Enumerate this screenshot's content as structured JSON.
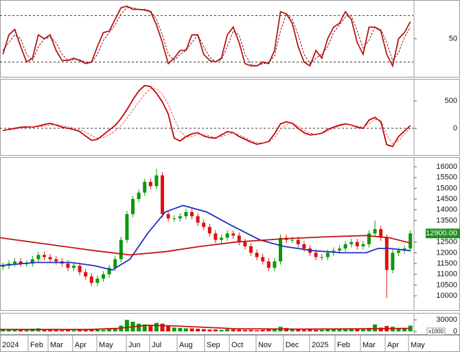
{
  "chart_data": [
    {
      "type": "line",
      "ylim": [
        0,
        100
      ],
      "yticks": [
        50
      ],
      "hlines": [
        20,
        80
      ],
      "xlim": [
        0,
        70
      ],
      "x": [
        0.5,
        1.5,
        2.5,
        3.5,
        4.5,
        5.5,
        6.5,
        7.5,
        8.5,
        9.5,
        10.5,
        11.5,
        12.5,
        13.5,
        14.5,
        15.5,
        16.5,
        17.5,
        18.5,
        19.5,
        20.5,
        21.5,
        22.5,
        23.5,
        24.5,
        25.5,
        26.5,
        27.5,
        28.5,
        29.5,
        30.5,
        31.5,
        32.5,
        33.5,
        34.5,
        35.5,
        36.5,
        37.5,
        38.5,
        39.5,
        40.5,
        41.5,
        42.5,
        43.5,
        44.5,
        45.5,
        46.5,
        47.5,
        48.5,
        49.5,
        50.5,
        51.5,
        52.5,
        53.5,
        54.5,
        55.5,
        56.5,
        57.5,
        58.5,
        59.5,
        60.5,
        61.5,
        62.5,
        63.5,
        64.5,
        65.5,
        66.5,
        67.5,
        68.5,
        69.5
      ],
      "series": [
        {
          "color": "#b81414",
          "dash": false,
          "values": [
            30,
            55,
            62,
            40,
            20,
            25,
            55,
            50,
            55,
            35,
            22,
            22,
            25,
            22,
            18,
            20,
            40,
            58,
            60,
            75,
            90,
            92,
            88,
            88,
            87,
            85,
            68,
            45,
            18,
            25,
            35,
            35,
            55,
            55,
            30,
            22,
            20,
            25,
            55,
            65,
            45,
            18,
            15,
            15,
            20,
            18,
            35,
            85,
            82,
            70,
            40,
            20,
            15,
            35,
            25,
            50,
            65,
            70,
            85,
            75,
            45,
            30,
            65,
            65,
            60,
            30,
            15,
            50,
            58,
            72
          ]
        },
        {
          "color": "#7a1010",
          "dash": true,
          "values": [
            35,
            45,
            55,
            50,
            30,
            22,
            40,
            50,
            52,
            45,
            30,
            22,
            23,
            23,
            20,
            19,
            30,
            48,
            58,
            68,
            82,
            90,
            90,
            88,
            88,
            86,
            75,
            55,
            30,
            22,
            30,
            35,
            45,
            55,
            40,
            26,
            21,
            23,
            40,
            60,
            55,
            30,
            17,
            15,
            18,
            19,
            28,
            60,
            82,
            75,
            55,
            30,
            18,
            25,
            30,
            40,
            58,
            68,
            78,
            80,
            60,
            38,
            48,
            65,
            62,
            45,
            22,
            32,
            52,
            65
          ]
        }
      ]
    },
    {
      "type": "line",
      "ylim": [
        -500,
        900
      ],
      "yticks": [
        0,
        500
      ],
      "hlines": [
        0
      ],
      "xlim": [
        0,
        70
      ],
      "x": [
        0.5,
        1.5,
        2.5,
        3.5,
        4.5,
        5.5,
        6.5,
        7.5,
        8.5,
        9.5,
        10.5,
        11.5,
        12.5,
        13.5,
        14.5,
        15.5,
        16.5,
        17.5,
        18.5,
        19.5,
        20.5,
        21.5,
        22.5,
        23.5,
        24.5,
        25.5,
        26.5,
        27.5,
        28.5,
        29.5,
        30.5,
        31.5,
        32.5,
        33.5,
        34.5,
        35.5,
        36.5,
        37.5,
        38.5,
        39.5,
        40.5,
        41.5,
        42.5,
        43.5,
        44.5,
        45.5,
        46.5,
        47.5,
        48.5,
        49.5,
        50.5,
        51.5,
        52.5,
        53.5,
        54.5,
        55.5,
        56.5,
        57.5,
        58.5,
        59.5,
        60.5,
        61.5,
        62.5,
        63.5,
        64.5,
        65.5,
        66.5,
        67.5,
        68.5,
        69.5
      ],
      "series": [
        {
          "color": "#c00000",
          "dash": false,
          "values": [
            -40,
            -20,
            0,
            20,
            25,
            20,
            40,
            70,
            90,
            60,
            20,
            0,
            -20,
            -60,
            -140,
            -220,
            -200,
            -120,
            -30,
            50,
            180,
            340,
            520,
            680,
            780,
            760,
            640,
            480,
            260,
            -180,
            -230,
            -150,
            -100,
            -80,
            -140,
            -170,
            -180,
            -120,
            -60,
            -80,
            -150,
            -200,
            -250,
            -290,
            -270,
            -240,
            -100,
            80,
            120,
            90,
            0,
            -80,
            -120,
            -110,
            -90,
            -20,
            20,
            60,
            80,
            60,
            20,
            0,
            150,
            200,
            120,
            -300,
            -330,
            -150,
            -50,
            50
          ]
        },
        {
          "color": "#e05050",
          "dash": true,
          "values": [
            -30,
            -30,
            -15,
            0,
            15,
            22,
            27,
            40,
            60,
            70,
            50,
            30,
            5,
            -25,
            -70,
            -130,
            -180,
            -170,
            -120,
            -50,
            50,
            180,
            330,
            480,
            620,
            720,
            720,
            620,
            440,
            180,
            -50,
            -160,
            -150,
            -110,
            -110,
            -140,
            -170,
            -150,
            -110,
            -80,
            -120,
            -170,
            -220,
            -260,
            -270,
            -250,
            -170,
            -20,
            70,
            100,
            40,
            -30,
            -90,
            -110,
            -100,
            -50,
            0,
            40,
            70,
            60,
            40,
            20,
            90,
            160,
            150,
            -120,
            -280,
            -230,
            -100,
            0
          ]
        }
      ]
    },
    {
      "type": "candlestick",
      "ylim": [
        9300,
        16450
      ],
      "yticks": [
        10000,
        10500,
        11000,
        11500,
        12000,
        12500,
        13500,
        14000,
        14500,
        15000,
        15500,
        16000
      ],
      "xlim": [
        0,
        70
      ],
      "up_color": "#0a9a0a",
      "down_color": "#e01010",
      "last_price_label": {
        "value": 12900,
        "label": "12900.00"
      },
      "last_price_color": "#1d8f1d",
      "x": [
        0.5,
        1.5,
        2.5,
        3.5,
        4.5,
        5.5,
        6.5,
        7.5,
        8.5,
        9.5,
        10.5,
        11.5,
        12.5,
        13.5,
        14.5,
        15.5,
        16.5,
        17.5,
        18.5,
        19.5,
        20.5,
        21.5,
        22.5,
        23.5,
        24.5,
        25.5,
        26.5,
        27.5,
        28.5,
        29.5,
        30.5,
        31.5,
        32.5,
        33.5,
        34.5,
        35.5,
        36.5,
        37.5,
        38.5,
        39.5,
        40.5,
        41.5,
        42.5,
        43.5,
        44.5,
        45.5,
        46.5,
        47.5,
        48.5,
        49.5,
        50.5,
        51.5,
        52.5,
        53.5,
        54.5,
        55.5,
        56.5,
        57.5,
        58.5,
        59.5,
        60.5,
        61.5,
        62.5,
        63.5,
        64.5,
        65.5,
        66.5,
        67.5,
        68.5,
        69.5
      ],
      "open": [
        11350,
        11400,
        11500,
        11600,
        11500,
        11500,
        11700,
        11900,
        11800,
        11700,
        11600,
        11500,
        11300,
        11400,
        11100,
        10900,
        10600,
        10800,
        11000,
        11300,
        11700,
        12600,
        13800,
        14500,
        14800,
        15300,
        15100,
        15600,
        13800,
        13600,
        13600,
        13700,
        13900,
        13700,
        13400,
        13200,
        12900,
        12600,
        12700,
        12900,
        12800,
        12500,
        12300,
        12000,
        11800,
        11600,
        11300,
        11600,
        12700,
        12600,
        12600,
        12400,
        12200,
        12000,
        11800,
        11800,
        12000,
        12100,
        12200,
        12400,
        12500,
        12300,
        12400,
        12900,
        13100,
        12700,
        11200,
        12000,
        12100,
        12200
      ],
      "high": [
        11550,
        11650,
        11750,
        11750,
        11650,
        11850,
        12050,
        12050,
        11950,
        11850,
        11750,
        11650,
        11550,
        11550,
        11250,
        11050,
        10950,
        11150,
        11450,
        11850,
        12750,
        13950,
        14650,
        14950,
        15450,
        15450,
        15900,
        15750,
        13950,
        13750,
        13850,
        14050,
        14050,
        13850,
        13550,
        13350,
        13050,
        12850,
        13050,
        13050,
        12950,
        12650,
        12450,
        12150,
        11950,
        11750,
        11750,
        12850,
        12850,
        12750,
        12750,
        12550,
        12350,
        12150,
        11950,
        12150,
        12250,
        12350,
        12550,
        12650,
        12650,
        12550,
        13050,
        13500,
        13250,
        12850,
        12150,
        12250,
        12350,
        13050
      ],
      "low": [
        11200,
        11250,
        11350,
        11350,
        11350,
        11350,
        11550,
        11650,
        11550,
        11450,
        11350,
        11150,
        11150,
        10950,
        10750,
        10450,
        10450,
        10650,
        10850,
        11150,
        11550,
        12450,
        13650,
        14350,
        14650,
        14950,
        14950,
        13650,
        13450,
        13450,
        13450,
        13550,
        13550,
        13250,
        13050,
        12750,
        12450,
        12450,
        12550,
        12650,
        12350,
        12150,
        11850,
        11650,
        11450,
        11150,
        11150,
        11450,
        12450,
        12450,
        12250,
        12050,
        11850,
        11650,
        11650,
        11650,
        11850,
        11950,
        12050,
        12250,
        12150,
        12150,
        12250,
        12750,
        12550,
        9900,
        11050,
        11850,
        11950,
        12050
      ],
      "close": [
        11400,
        11500,
        11600,
        11500,
        11500,
        11700,
        11900,
        11800,
        11700,
        11600,
        11500,
        11300,
        11400,
        11100,
        10900,
        10600,
        10800,
        11000,
        11300,
        11700,
        12600,
        13800,
        14500,
        14800,
        15300,
        15100,
        15600,
        13800,
        13600,
        13600,
        13700,
        13900,
        13700,
        13400,
        13200,
        12900,
        12600,
        12700,
        12900,
        12800,
        12500,
        12300,
        12000,
        11800,
        11600,
        11300,
        11600,
        12700,
        12600,
        12600,
        12400,
        12200,
        12000,
        11800,
        11800,
        12000,
        12100,
        12200,
        12400,
        12500,
        12300,
        12400,
        12900,
        13100,
        12700,
        11200,
        12000,
        12100,
        12200,
        12900
      ],
      "series": [
        {
          "color": "#1f2fbf",
          "x": [
            0,
            6,
            12,
            16,
            19,
            22,
            25,
            28,
            31,
            35,
            39,
            44,
            48,
            53,
            58,
            62,
            64,
            66,
            69.5
          ],
          "values": [
            11400,
            11550,
            11550,
            11400,
            11200,
            11700,
            12900,
            13900,
            14200,
            13900,
            13300,
            12600,
            12300,
            12100,
            12000,
            12000,
            12200,
            12200,
            12100
          ]
        },
        {
          "color": "#c41010",
          "x": [
            0,
            8,
            16,
            22,
            28,
            34,
            40,
            48,
            56,
            62,
            66,
            69.5
          ],
          "values": [
            12700,
            12400,
            12100,
            11900,
            12050,
            12300,
            12500,
            12650,
            12750,
            12800,
            12700,
            12450
          ]
        }
      ]
    },
    {
      "type": "bar",
      "ylim": [
        0,
        48000
      ],
      "yticks": [
        0,
        30000
      ],
      "unit_label": "x1000",
      "xlim": [
        0,
        70
      ],
      "xticks": [
        {
          "value": 0,
          "label": "2024"
        },
        {
          "value": 4.77,
          "label": "Feb"
        },
        {
          "value": 8.14,
          "label": "Mar"
        },
        {
          "value": 12.3,
          "label": "Apr"
        },
        {
          "value": 16.4,
          "label": "May"
        },
        {
          "value": 21.4,
          "label": "Jun"
        },
        {
          "value": 25.35,
          "label": "Jul"
        },
        {
          "value": 30,
          "label": "Aug"
        },
        {
          "value": 34.65,
          "label": "Sep"
        },
        {
          "value": 38.84,
          "label": "Oct"
        },
        {
          "value": 43.37,
          "label": "Nov"
        },
        {
          "value": 48,
          "label": "Dec"
        },
        {
          "value": 52.44,
          "label": "2025"
        },
        {
          "value": 56.74,
          "label": "Feb"
        },
        {
          "value": 61.05,
          "label": "Mar"
        },
        {
          "value": 65.23,
          "label": "Apr"
        },
        {
          "value": 69.19,
          "label": "May"
        }
      ],
      "x": [
        0.5,
        1.5,
        2.5,
        3.5,
        4.5,
        5.5,
        6.5,
        7.5,
        8.5,
        9.5,
        10.5,
        11.5,
        12.5,
        13.5,
        14.5,
        15.5,
        16.5,
        17.5,
        18.5,
        19.5,
        20.5,
        21.5,
        22.5,
        23.5,
        24.5,
        25.5,
        26.5,
        27.5,
        28.5,
        29.5,
        30.5,
        31.5,
        32.5,
        33.5,
        34.5,
        35.5,
        36.5,
        37.5,
        38.5,
        39.5,
        40.5,
        41.5,
        42.5,
        43.5,
        44.5,
        45.5,
        46.5,
        47.5,
        48.5,
        49.5,
        50.5,
        51.5,
        52.5,
        53.5,
        54.5,
        55.5,
        56.5,
        57.5,
        58.5,
        59.5,
        60.5,
        61.5,
        62.5,
        63.5,
        64.5,
        65.5,
        66.5,
        67.5,
        68.5,
        69.5
      ],
      "values": [
        5000,
        4000,
        6000,
        4000,
        5000,
        7000,
        8000,
        5000,
        4000,
        4000,
        3000,
        4000,
        3000,
        5000,
        4000,
        6000,
        5000,
        4000,
        6000,
        8000,
        15000,
        30000,
        25000,
        20000,
        18000,
        15000,
        22000,
        20000,
        14000,
        10000,
        9000,
        8000,
        8000,
        7000,
        6000,
        5000,
        5000,
        4000,
        6000,
        5000,
        5000,
        4000,
        4000,
        3000,
        4000,
        5000,
        6000,
        12000,
        9000,
        7000,
        5000,
        4000,
        5000,
        4000,
        4000,
        5000,
        6000,
        6000,
        5000,
        7000,
        6000,
        5000,
        9000,
        18000,
        10000,
        14000,
        12000,
        8000,
        7000,
        15000
      ],
      "series": [
        {
          "color": "#c41010",
          "x": [
            0,
            15,
            20,
            25,
            30,
            40,
            50,
            60,
            69.5
          ],
          "values": [
            5000,
            5000,
            8000,
            16000,
            14000,
            7000,
            6000,
            6500,
            8000
          ]
        }
      ]
    }
  ]
}
